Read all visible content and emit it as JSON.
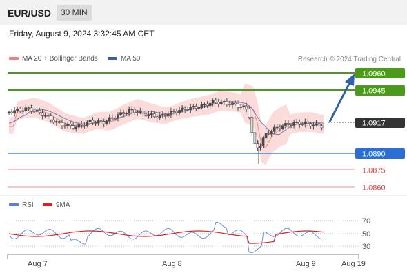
{
  "header": {
    "symbol": "EUR/USD",
    "timeframe": "30 MIN"
  },
  "datetime": "Friday, August 9, 2024 3:32:45 AM CET",
  "legend": {
    "ma20": "MA 20 + Bollinger Bands",
    "ma50": "MA 50",
    "credit": "Research © 2024 Trading Central"
  },
  "levels": [
    {
      "value": "1.0960",
      "kind": "resistance"
    },
    {
      "value": "1.0945",
      "kind": "resistance"
    },
    {
      "value": "1.0917",
      "kind": "current"
    },
    {
      "value": "1.0890",
      "kind": "pivot"
    },
    {
      "value": "1.0875",
      "kind": "support"
    },
    {
      "value": "1.0860",
      "kind": "support"
    }
  ],
  "rsi_legend": {
    "rsi": "RSI",
    "ma9": "9MA"
  },
  "rsi_ticks": [
    "70",
    "50",
    "30"
  ],
  "x_axis": [
    "Aug 7",
    "Aug 8",
    "Aug 9",
    "Aug 19"
  ],
  "colors": {
    "green": "#4c9a1a",
    "blue": "#2a6fd6",
    "red": "#e04040",
    "candle": "#4a4a4a",
    "band": "#fbd5d5"
  }
}
